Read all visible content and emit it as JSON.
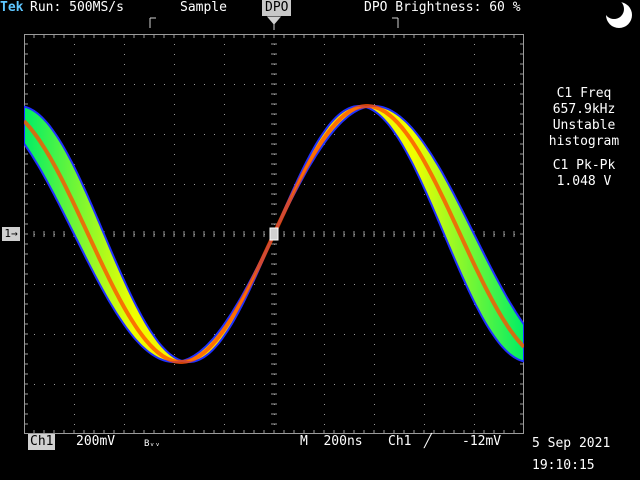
{
  "header": {
    "brand": "Tek",
    "run_status": "Run: 500MS/s",
    "acquisition_mode": "Sample",
    "display_mode": "DPO",
    "brightness": "DPO Brightness: 60 %"
  },
  "measurements": [
    {
      "title": "C1 Freq",
      "value": "657.9kHz",
      "status1": "Unstable",
      "status2": "histogram"
    },
    {
      "title": "C1 Pk-Pk",
      "value": "1.048 V"
    }
  ],
  "channel_marker": "1→",
  "footer": {
    "channel": "Ch1",
    "volts_per_div": "200mV",
    "bandwidth": "Bᵥᵥ",
    "timebase": "M  200ns",
    "trigger_source": "Ch1",
    "trigger_slope": "╱",
    "trigger_level": "-12mV",
    "date": "5 Sep 2021",
    "time": "19:10:15"
  },
  "colors": {
    "grid": "#9a9a9a",
    "trace_edge": "#2030ff",
    "trace_outer": "#00ee66",
    "trace_mid": "#f0ff00",
    "trace_hot": "#ff5000",
    "brand": "#5ec6ff"
  }
}
